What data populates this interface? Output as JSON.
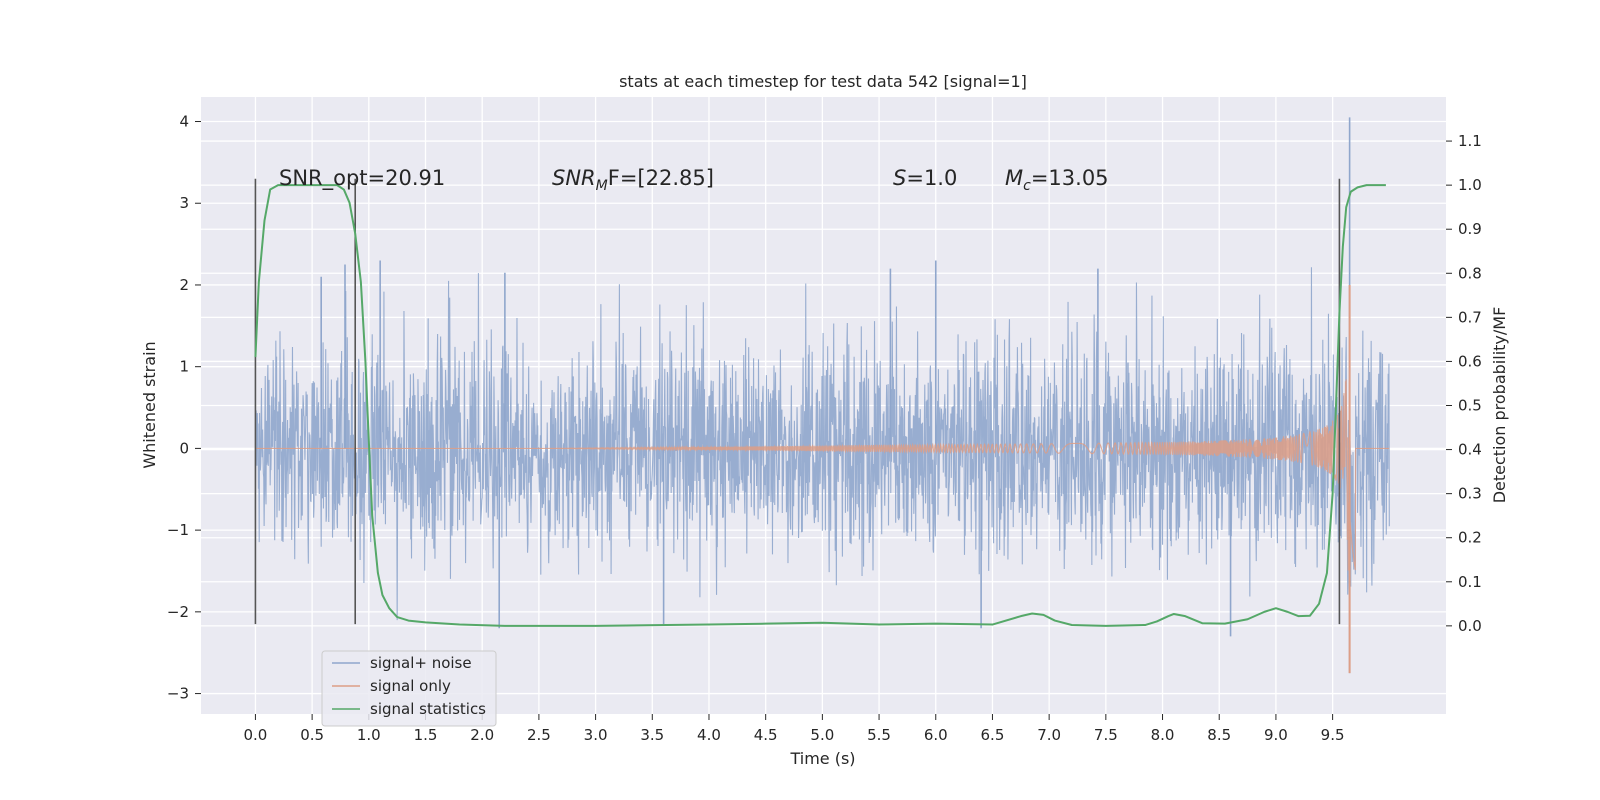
{
  "chart_data": {
    "type": "line",
    "title": "stats at each timestep for test data 542 [signal=1]",
    "xlabel": "Time (s)",
    "ylabel": "Whitened strain",
    "ylabel_right": "Detection probability/MF",
    "xlim": [
      -0.48,
      10.5
    ],
    "ylim": [
      -3.25,
      4.3
    ],
    "ylim_right": [
      -0.2,
      1.2
    ],
    "x_ticks": [
      "0.0",
      "0.5",
      "1.0",
      "1.5",
      "2.0",
      "2.5",
      "3.0",
      "3.5",
      "4.0",
      "4.5",
      "5.0",
      "5.5",
      "6.0",
      "6.5",
      "7.0",
      "7.5",
      "8.0",
      "8.5",
      "9.0",
      "9.5"
    ],
    "y_ticks": [
      "−3",
      "−2",
      "−1",
      "0",
      "1",
      "2",
      "3",
      "4"
    ],
    "y_ticks_right": [
      "0.0",
      "0.1",
      "0.2",
      "0.3",
      "0.4",
      "0.5",
      "0.6",
      "0.7",
      "0.8",
      "0.9",
      "1.0",
      "1.1"
    ],
    "grid": true,
    "legend_position": "lower-left",
    "annotations": {
      "snr_opt": "SNR_opt=20.91",
      "snr_mf_base": "SNR",
      "snr_mf_sub": "M",
      "snr_mf_rest": "F=[22.85]",
      "s_var": "S",
      "s_val": "=1.0",
      "mc_base": "M",
      "mc_sub": "c",
      "mc_val": "=13.05"
    },
    "series": [
      {
        "name": "signal+ noise",
        "color": "#8fa6cc",
        "x_range": [
          0.0,
          10.0
        ],
        "noise_sigma": 0.75,
        "peak_values": [
          [
            0.58,
            2.1
          ],
          [
            0.79,
            2.25
          ],
          [
            1.1,
            2.3
          ],
          [
            2.2,
            2.15
          ],
          [
            5.6,
            2.2
          ],
          [
            6.0,
            2.3
          ],
          [
            7.43,
            2.2
          ],
          [
            9.65,
            4.05
          ],
          [
            9.65,
            -2.75
          ],
          [
            2.15,
            -2.2
          ],
          [
            3.6,
            -2.15
          ],
          [
            6.4,
            -2.2
          ],
          [
            8.6,
            -2.3
          ]
        ]
      },
      {
        "name": "signal only",
        "color": "#dd9e86",
        "x_range": [
          0.0,
          10.0
        ],
        "chirp_onset": 5.5,
        "merger_time": 9.65,
        "peak_amplitude_max": 2.0,
        "peak_amplitude_min": -2.75,
        "end_time": 9.7
      },
      {
        "name": "signal statistics",
        "color": "#55a868",
        "axis": "right",
        "x": [
          0.0,
          0.03,
          0.08,
          0.13,
          0.2,
          0.3,
          0.45,
          0.6,
          0.72,
          0.78,
          0.83,
          0.88,
          0.93,
          0.97,
          1.0,
          1.03,
          1.08,
          1.12,
          1.18,
          1.25,
          1.35,
          1.5,
          1.8,
          2.2,
          3.0,
          4.0,
          4.5,
          5.0,
          5.5,
          6.0,
          6.5,
          6.75,
          6.85,
          6.95,
          7.05,
          7.2,
          7.5,
          7.85,
          7.95,
          8.05,
          8.1,
          8.2,
          8.35,
          8.55,
          8.75,
          8.9,
          9.0,
          9.1,
          9.2,
          9.3,
          9.38,
          9.45,
          9.5,
          9.53,
          9.56,
          9.59,
          9.62,
          9.66,
          9.72,
          9.8,
          9.9,
          9.97
        ],
        "y": [
          0.61,
          0.78,
          0.92,
          0.99,
          1.0,
          1.0,
          1.0,
          1.0,
          1.0,
          0.99,
          0.96,
          0.89,
          0.78,
          0.6,
          0.42,
          0.25,
          0.12,
          0.07,
          0.04,
          0.02,
          0.012,
          0.008,
          0.003,
          0.0,
          0.0,
          0.003,
          0.005,
          0.007,
          0.003,
          0.005,
          0.003,
          0.022,
          0.028,
          0.025,
          0.012,
          0.002,
          0.0,
          0.002,
          0.01,
          0.022,
          0.027,
          0.022,
          0.006,
          0.005,
          0.015,
          0.032,
          0.04,
          0.032,
          0.022,
          0.023,
          0.05,
          0.12,
          0.3,
          0.5,
          0.71,
          0.86,
          0.95,
          0.985,
          0.995,
          1.0,
          1.0,
          1.0
        ]
      }
    ],
    "vlines": [
      {
        "x": 0.0,
        "y0": -2.15,
        "y1": 3.3
      },
      {
        "x": 0.88,
        "y0": -2.15,
        "y1": 3.3
      },
      {
        "x": 9.56,
        "y0": -2.15,
        "y1": 3.3
      }
    ]
  }
}
